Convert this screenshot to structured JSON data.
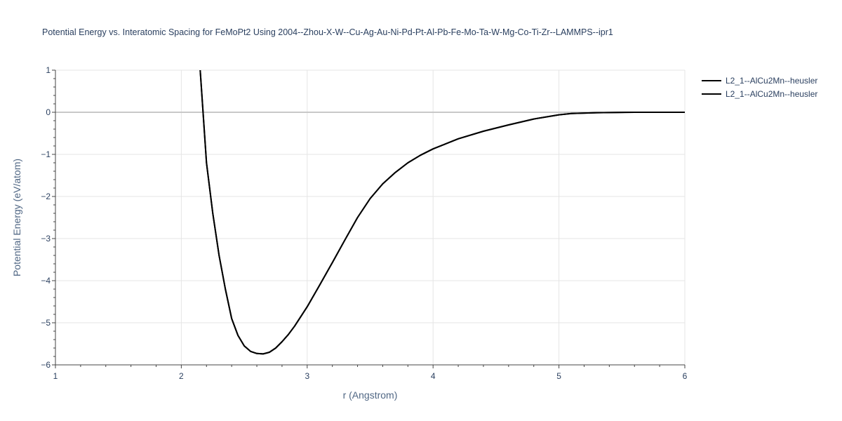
{
  "chart_data": {
    "type": "line",
    "title": "Potential Energy vs. Interatomic Spacing for FeMoPt2 Using 2004--Zhou-X-W--Cu-Ag-Au-Ni-Pd-Pt-Al-Pb-Fe-Mo-Ta-W-Mg-Co-Ti-Zr--LAMMPS--ipr1",
    "xlabel": "r (Angstrom)",
    "ylabel": "Potential Energy (eV/atom)",
    "xlim": [
      1,
      6
    ],
    "ylim": [
      -6,
      1
    ],
    "x_ticks": [
      "1",
      "2",
      "3",
      "4",
      "5",
      "6"
    ],
    "y_ticks": [
      "1",
      "0",
      "−1",
      "−2",
      "−3",
      "−4",
      "−5",
      "−6"
    ],
    "grid": true,
    "legend_position": "top-right",
    "series": [
      {
        "name": "L2_1--AlCu2Mn--heusler",
        "color": "#000000",
        "x": [
          2.15,
          2.2,
          2.25,
          2.3,
          2.35,
          2.4,
          2.45,
          2.5,
          2.55,
          2.6,
          2.65,
          2.7,
          2.75,
          2.8,
          2.85,
          2.9,
          3.0,
          3.1,
          3.2,
          3.3,
          3.4,
          3.5,
          3.6,
          3.7,
          3.8,
          3.9,
          4.0,
          4.2,
          4.4,
          4.6,
          4.8,
          5.0,
          5.1,
          5.3,
          5.6,
          6.0
        ],
        "y": [
          1.0,
          -1.2,
          -2.4,
          -3.4,
          -4.2,
          -4.9,
          -5.3,
          -5.55,
          -5.68,
          -5.73,
          -5.74,
          -5.7,
          -5.6,
          -5.45,
          -5.28,
          -5.08,
          -4.62,
          -4.1,
          -3.57,
          -3.03,
          -2.5,
          -2.05,
          -1.7,
          -1.43,
          -1.2,
          -1.02,
          -0.87,
          -0.63,
          -0.45,
          -0.3,
          -0.16,
          -0.06,
          -0.03,
          -0.01,
          0.0,
          0.0
        ]
      },
      {
        "name": "L2_1--AlCu2Mn--heusler",
        "color": "#000000",
        "x": [
          2.15,
          2.2,
          2.25,
          2.3,
          2.35,
          2.4,
          2.45,
          2.5,
          2.55,
          2.6,
          2.65,
          2.7,
          2.75,
          2.8,
          2.85,
          2.9,
          3.0,
          3.1,
          3.2,
          3.3,
          3.4,
          3.5,
          3.6,
          3.7,
          3.8,
          3.9,
          4.0,
          4.2,
          4.4,
          4.6,
          4.8,
          5.0,
          5.1,
          5.3,
          5.6,
          6.0
        ],
        "y": [
          1.0,
          -1.2,
          -2.4,
          -3.4,
          -4.2,
          -4.9,
          -5.3,
          -5.55,
          -5.68,
          -5.73,
          -5.74,
          -5.7,
          -5.6,
          -5.45,
          -5.28,
          -5.08,
          -4.62,
          -4.1,
          -3.57,
          -3.03,
          -2.5,
          -2.05,
          -1.7,
          -1.43,
          -1.2,
          -1.02,
          -0.87,
          -0.63,
          -0.45,
          -0.3,
          -0.16,
          -0.06,
          -0.03,
          -0.01,
          0.0,
          0.0
        ]
      }
    ]
  }
}
